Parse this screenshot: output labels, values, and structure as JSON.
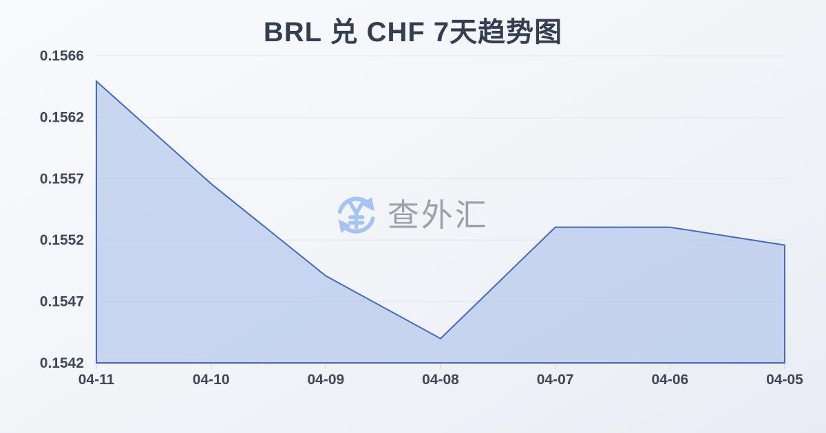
{
  "title": "BRL 兑 CHF 7天趋势图",
  "watermark": {
    "text": "查外汇",
    "icon": "yuan-refresh-icon",
    "icon_color": "#a6c3f6",
    "text_color": "#9aa1aa"
  },
  "chart_data": {
    "type": "area",
    "title": "BRL 兑 CHF 7天趋势图",
    "categories": [
      "04-11",
      "04-10",
      "04-09",
      "04-08",
      "04-07",
      "04-06",
      "04-05"
    ],
    "series": [
      {
        "name": "BRL/CHF",
        "values": [
          0.1564,
          0.1556,
          0.15488,
          0.15439,
          0.15526,
          0.15526,
          0.15512
        ]
      }
    ],
    "xlabel": "",
    "ylabel": "",
    "y_ticks": [
      "0.1566",
      "0.1562",
      "0.1557",
      "0.1552",
      "0.1547",
      "0.1542"
    ],
    "ylim": [
      0.1542,
      0.1566
    ],
    "grid": true,
    "legend": "none",
    "line_color": "#4169c2",
    "fill_color": "rgba(170,192,234,0.6)",
    "grid_color": "#e2e5ea",
    "tick_mark_color": "#d0d4da",
    "axis_label_color": "#3d4757"
  }
}
